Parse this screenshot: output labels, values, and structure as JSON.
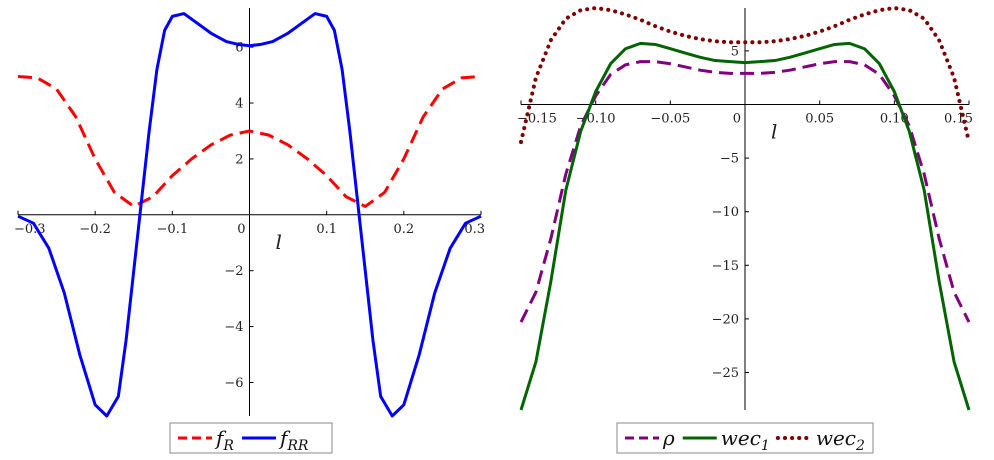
{
  "chart_data": [
    {
      "type": "line",
      "title": "",
      "xlabel": "l",
      "ylabel": "",
      "xlim": [
        -0.3,
        0.3
      ],
      "ylim": [
        -7.2,
        7.4
      ],
      "x_ticks": [
        -0.3,
        -0.2,
        -0.1,
        0,
        0.1,
        0.2,
        0.3
      ],
      "x_tick_labels": [
        "−0.3",
        "−0.2",
        "−0.1",
        "0",
        "0.1",
        "0.2",
        "0.3"
      ],
      "y_ticks": [
        6,
        4,
        2,
        -2,
        -4,
        -6
      ],
      "y_tick_labels": [
        "6",
        "4",
        "2",
        "−2",
        "−4",
        "−6"
      ],
      "grid": false,
      "legend_position": "bottom-center",
      "series": [
        {
          "name": "f_R",
          "legend_main": "f",
          "legend_sub": "R",
          "color": "#ff0000",
          "style": "dash",
          "x": [
            -0.3,
            -0.275,
            -0.25,
            -0.225,
            -0.2,
            -0.175,
            -0.15,
            -0.125,
            -0.1,
            -0.075,
            -0.05,
            -0.025,
            0,
            0.025,
            0.05,
            0.075,
            0.1,
            0.125,
            0.15,
            0.175,
            0.2,
            0.225,
            0.25,
            0.275,
            0.3
          ],
          "y": [
            4.95,
            4.9,
            4.5,
            3.5,
            2.0,
            0.8,
            0.3,
            0.65,
            1.4,
            2.0,
            2.5,
            2.85,
            3.0,
            2.85,
            2.5,
            2.0,
            1.4,
            0.65,
            0.3,
            0.8,
            2.0,
            3.5,
            4.5,
            4.9,
            4.95
          ]
        },
        {
          "name": "f_RR",
          "legend_main": "f",
          "legend_sub": "RR",
          "color": "#0000ff",
          "style": "solid",
          "x": [
            -0.3,
            -0.28,
            -0.26,
            -0.24,
            -0.22,
            -0.2,
            -0.185,
            -0.17,
            -0.16,
            -0.15,
            -0.14,
            -0.13,
            -0.12,
            -0.11,
            -0.1,
            -0.085,
            -0.07,
            -0.05,
            -0.03,
            -0.015,
            0,
            0.015,
            0.03,
            0.05,
            0.07,
            0.085,
            0.1,
            0.11,
            0.12,
            0.13,
            0.14,
            0.15,
            0.16,
            0.17,
            0.185,
            0.2,
            0.22,
            0.24,
            0.26,
            0.28,
            0.3
          ],
          "y": [
            -0.05,
            -0.3,
            -1.2,
            -2.8,
            -5.0,
            -6.8,
            -7.2,
            -6.5,
            -4.5,
            -2.0,
            0.5,
            3.0,
            5.2,
            6.6,
            7.1,
            7.2,
            6.9,
            6.5,
            6.2,
            6.1,
            6.05,
            6.1,
            6.2,
            6.5,
            6.9,
            7.2,
            7.1,
            6.6,
            5.2,
            3.0,
            0.5,
            -2.0,
            -4.5,
            -6.5,
            -7.2,
            -6.8,
            -5.0,
            -2.8,
            -1.2,
            -0.3,
            -0.05
          ]
        }
      ]
    },
    {
      "type": "line",
      "title": "",
      "xlabel": "l",
      "ylabel": "",
      "xlim": [
        -0.15,
        0.15
      ],
      "ylim": [
        -28.5,
        9
      ],
      "x_ticks": [
        -0.15,
        -0.1,
        -0.05,
        0,
        0.05,
        0.1,
        0.15
      ],
      "x_tick_labels": [
        "−0.15",
        "−0.10",
        "−0.05",
        "0",
        "0.05",
        "0.10",
        "0.15"
      ],
      "y_ticks": [
        5,
        -5,
        -10,
        -15,
        -20,
        -25
      ],
      "y_tick_labels": [
        "5",
        "−5",
        "−10",
        "−15",
        "−20",
        "−25"
      ],
      "grid": false,
      "legend_position": "bottom-center",
      "series": [
        {
          "name": "ρ",
          "legend_main": "ρ",
          "legend_sub": "",
          "color": "#800080",
          "style": "dash",
          "x": [
            -0.15,
            -0.14,
            -0.13,
            -0.12,
            -0.11,
            -0.1,
            -0.09,
            -0.08,
            -0.07,
            -0.06,
            -0.05,
            -0.04,
            -0.03,
            -0.02,
            -0.01,
            0,
            0.01,
            0.02,
            0.03,
            0.04,
            0.05,
            0.06,
            0.07,
            0.08,
            0.09,
            0.1,
            0.11,
            0.12,
            0.13,
            0.14,
            0.15
          ],
          "y": [
            -20.3,
            -17.5,
            -12.5,
            -6.5,
            -2.0,
            0.8,
            2.8,
            3.7,
            4.0,
            4.0,
            3.8,
            3.5,
            3.2,
            3.0,
            2.9,
            2.9,
            2.9,
            3.0,
            3.2,
            3.5,
            3.8,
            4.0,
            4.0,
            3.7,
            2.8,
            0.8,
            -2.0,
            -6.5,
            -12.5,
            -17.5,
            -20.3
          ]
        },
        {
          "name": "wec_1",
          "legend_main": "wec",
          "legend_sub": "1",
          "color": "#006400",
          "style": "solid",
          "x": [
            -0.15,
            -0.14,
            -0.13,
            -0.12,
            -0.11,
            -0.1,
            -0.09,
            -0.08,
            -0.07,
            -0.06,
            -0.05,
            -0.04,
            -0.03,
            -0.02,
            -0.01,
            0,
            0.01,
            0.02,
            0.03,
            0.04,
            0.05,
            0.06,
            0.07,
            0.08,
            0.09,
            0.1,
            0.11,
            0.12,
            0.13,
            0.14,
            0.15
          ],
          "y": [
            -28.5,
            -24.0,
            -16.5,
            -8.0,
            -2.5,
            1.2,
            3.8,
            5.2,
            5.7,
            5.6,
            5.2,
            4.8,
            4.4,
            4.1,
            4.0,
            3.9,
            4.0,
            4.1,
            4.4,
            4.8,
            5.2,
            5.6,
            5.7,
            5.2,
            3.8,
            1.2,
            -2.5,
            -8.0,
            -16.5,
            -24.0,
            -28.5
          ]
        },
        {
          "name": "wec_2",
          "legend_main": "wec",
          "legend_sub": "2",
          "color": "#800000",
          "style": "dot",
          "x": [
            -0.15,
            -0.145,
            -0.14,
            -0.13,
            -0.12,
            -0.11,
            -0.1,
            -0.09,
            -0.08,
            -0.07,
            -0.06,
            -0.05,
            -0.04,
            -0.03,
            -0.02,
            -0.01,
            0,
            0.01,
            0.02,
            0.03,
            0.04,
            0.05,
            0.06,
            0.07,
            0.08,
            0.09,
            0.1,
            0.11,
            0.12,
            0.13,
            0.14,
            0.145,
            0.15
          ],
          "y": [
            -3.5,
            -0.5,
            2.5,
            6.0,
            8.0,
            8.8,
            9.0,
            8.8,
            8.4,
            7.9,
            7.3,
            6.8,
            6.4,
            6.1,
            5.9,
            5.8,
            5.8,
            5.8,
            5.9,
            6.1,
            6.4,
            6.8,
            7.3,
            7.9,
            8.4,
            8.8,
            9.0,
            8.8,
            8.0,
            6.0,
            2.5,
            -0.5,
            -3.5
          ]
        }
      ]
    }
  ]
}
